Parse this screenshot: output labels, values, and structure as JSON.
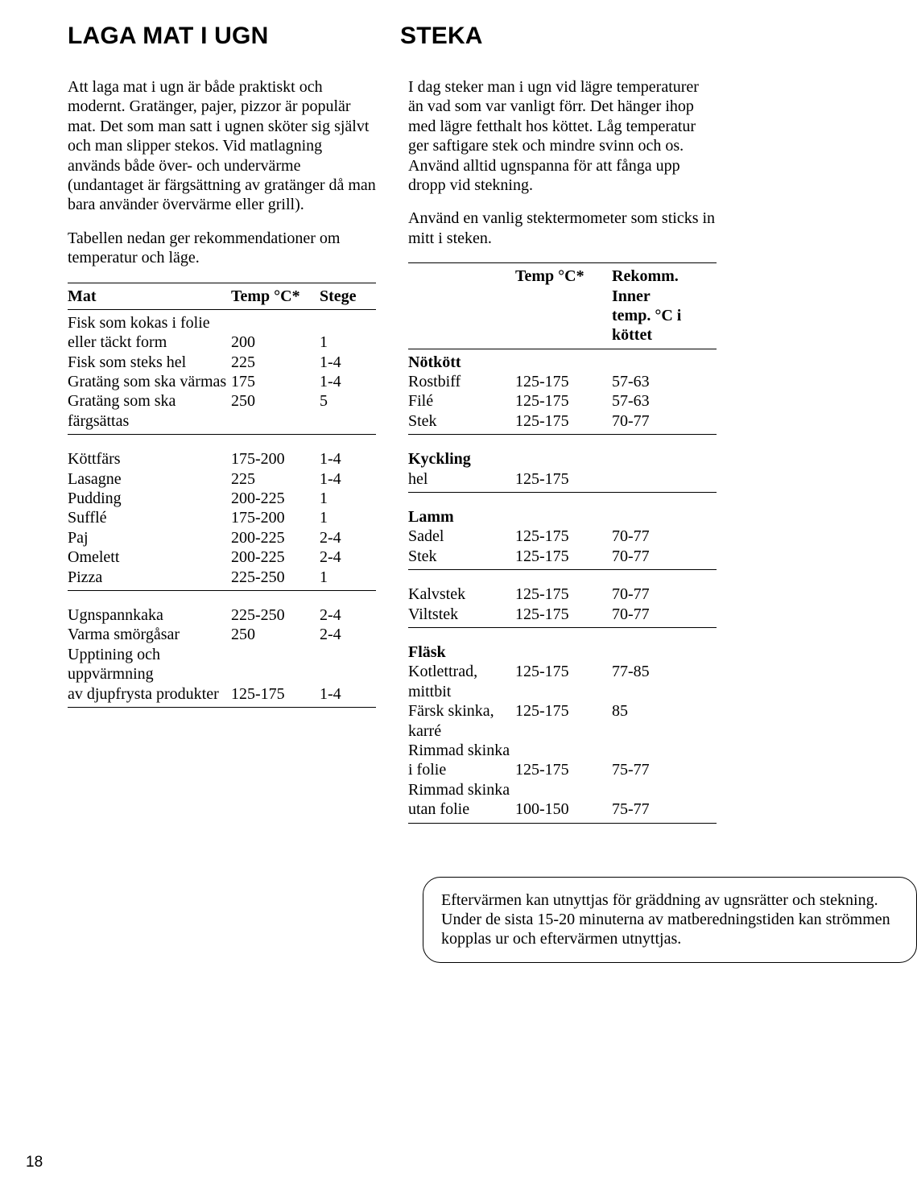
{
  "left": {
    "heading": "LAGA MAT I UGN",
    "paras": [
      "Att laga mat i ugn är både praktiskt och modernt. Gratänger, pajer, pizzor är populär mat. Det som man satt i ugnen sköter sig självt och man slipper stekos. Vid matlagning används både över- och undervärme (undantaget är färgsättning av gratänger då man bara använder övervärme eller grill).",
      "Tabellen nedan ger rekommendationer om temperatur och läge."
    ],
    "table": {
      "headers": {
        "name": "Mat",
        "temp": "Temp °C*",
        "stege": "Stege"
      },
      "groups": [
        {
          "rows": [
            {
              "name": "Fisk som kokas i folie",
              "temp": "",
              "stege": ""
            },
            {
              "name": "eller täckt form",
              "temp": "200",
              "stege": "1"
            },
            {
              "name": "Fisk som steks hel",
              "temp": "225",
              "stege": "1-4"
            },
            {
              "name": "Gratäng som ska värmas",
              "temp": "175",
              "stege": "1-4"
            },
            {
              "name": "Gratäng som ska färgsättas",
              "temp": "250",
              "stege": "5"
            }
          ]
        },
        {
          "rows": [
            {
              "name": "Köttfärs",
              "temp": "175-200",
              "stege": "1-4"
            },
            {
              "name": "Lasagne",
              "temp": "225",
              "stege": "1-4"
            },
            {
              "name": "Pudding",
              "temp": "200-225",
              "stege": "1"
            },
            {
              "name": "Sufflé",
              "temp": "175-200",
              "stege": "1"
            },
            {
              "name": "Paj",
              "temp": "200-225",
              "stege": "2-4"
            },
            {
              "name": "Omelett",
              "temp": "200-225",
              "stege": "2-4"
            },
            {
              "name": "Pizza",
              "temp": "225-250",
              "stege": "1"
            }
          ]
        },
        {
          "rows": [
            {
              "name": "Ugnspannkaka",
              "temp": "225-250",
              "stege": "2-4"
            },
            {
              "name": "Varma smörgåsar",
              "temp": "250",
              "stege": "2-4"
            },
            {
              "name": "Upptining och uppvärmning",
              "temp": "",
              "stege": ""
            },
            {
              "name": "av djupfrysta produkter",
              "temp": "125-175",
              "stege": "1-4"
            }
          ]
        }
      ]
    }
  },
  "right": {
    "heading": "STEKA",
    "paras": [
      "I dag steker man i ugn vid lägre temperaturer än vad som var vanligt förr. Det hänger ihop med lägre fetthalt hos köttet. Låg temperatur ger saftigare stek och mindre svinn och os. Använd alltid ugnspanna för att fånga upp dropp vid stekning.",
      "Använd en vanlig stektermometer som sticks in mitt i steken."
    ],
    "table": {
      "headers": {
        "temp": "Temp °C*",
        "inner1": "Rekomm. Inner",
        "inner2": "temp. °C i köttet"
      },
      "sections": [
        {
          "title": "Nötkött",
          "rows": [
            {
              "name": "Rostbiff",
              "temp": "125-175",
              "inner": "57-63"
            },
            {
              "name": "Filé",
              "temp": "125-175",
              "inner": "57-63"
            },
            {
              "name": "Stek",
              "temp": "125-175",
              "inner": "70-77"
            }
          ]
        },
        {
          "title": "Kyckling",
          "rows": [
            {
              "name": "hel",
              "temp": "125-175",
              "inner": ""
            }
          ]
        },
        {
          "title": "Lamm",
          "rows": [
            {
              "name": "Sadel",
              "temp": "125-175",
              "inner": "70-77"
            },
            {
              "name": "Stek",
              "temp": "125-175",
              "inner": "70-77"
            }
          ]
        },
        {
          "title": "",
          "rows": [
            {
              "name": "Kalvstek",
              "temp": "125-175",
              "inner": "70-77"
            },
            {
              "name": "Viltstek",
              "temp": "125-175",
              "inner": "70-77"
            }
          ]
        },
        {
          "title": "Fläsk",
          "rows": [
            {
              "name": "Kotlettrad, mittbit",
              "temp": "125-175",
              "inner": "77-85"
            },
            {
              "name": "Färsk skinka, karré",
              "temp": "125-175",
              "inner": "85"
            },
            {
              "name": "Rimmad skinka",
              "temp": "",
              "inner": ""
            },
            {
              "name": "i folie",
              "temp": "125-175",
              "inner": "75-77"
            },
            {
              "name": "Rimmad skinka",
              "temp": "",
              "inner": ""
            },
            {
              "name": "utan folie",
              "temp": "100-150",
              "inner": "75-77"
            }
          ]
        }
      ]
    }
  },
  "tip": "Eftervärmen kan utnyttjas för gräddning av ugnsrätter och stekning. Under de sista 15-20 minuterna av matberedningstiden kan strömmen kopplas ur och eftervärmen utnyttjas.",
  "page_number": "18"
}
